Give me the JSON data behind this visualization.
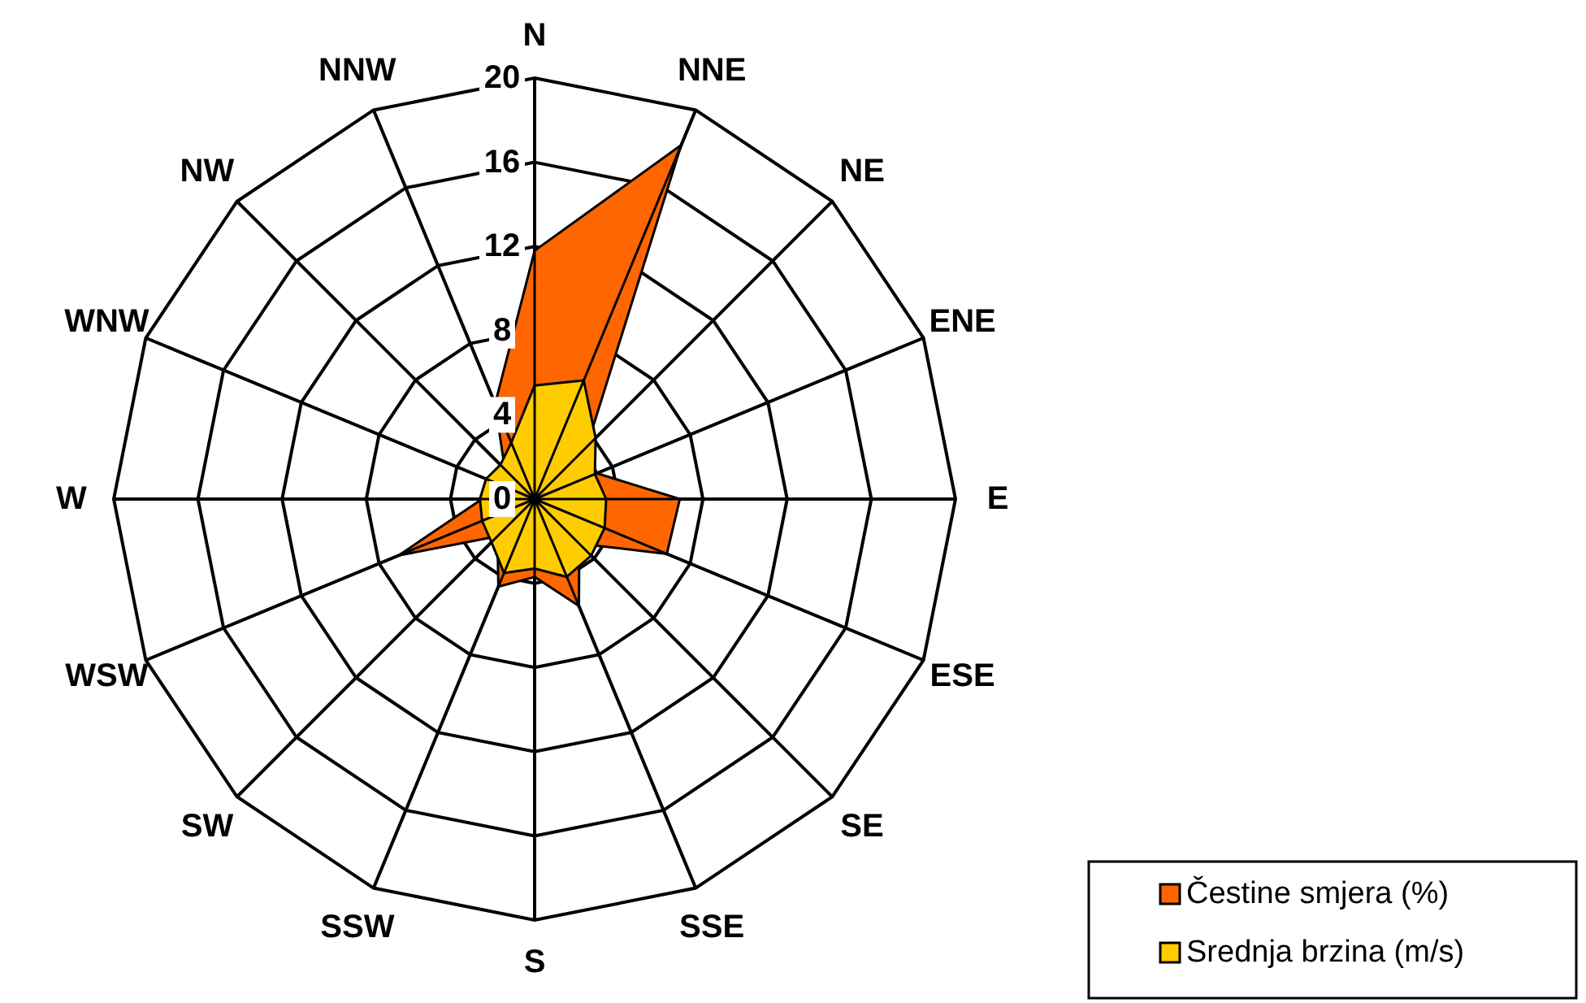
{
  "chart_data": {
    "type": "radar",
    "categories": [
      "N",
      "NNE",
      "NE",
      "ENE",
      "E",
      "ESE",
      "SE",
      "SSE",
      "S",
      "SSW",
      "SW",
      "WSW",
      "W",
      "WNW",
      "NW",
      "NNW"
    ],
    "series": [
      {
        "name": "Čestine smjera (%)",
        "color": "#ff6600",
        "values": [
          11.8,
          18.2,
          3.5,
          3.2,
          6.9,
          6.8,
          3.0,
          5.5,
          3.7,
          4.5,
          2.5,
          7.0,
          2.5,
          2.0,
          2.0,
          4.9
        ]
      },
      {
        "name": "Srednja brzina (m/s)",
        "color": "#ffcc00",
        "values": [
          5.4,
          6.1,
          4.1,
          3.1,
          3.4,
          3.6,
          3.8,
          4.0,
          3.3,
          3.8,
          2.9,
          2.7,
          2.6,
          2.5,
          2.3,
          2.9
        ]
      }
    ],
    "ylim": [
      0,
      20
    ],
    "yticks": [
      0,
      4,
      8,
      12,
      16,
      20
    ],
    "grid": true,
    "legend": "bottom right"
  }
}
